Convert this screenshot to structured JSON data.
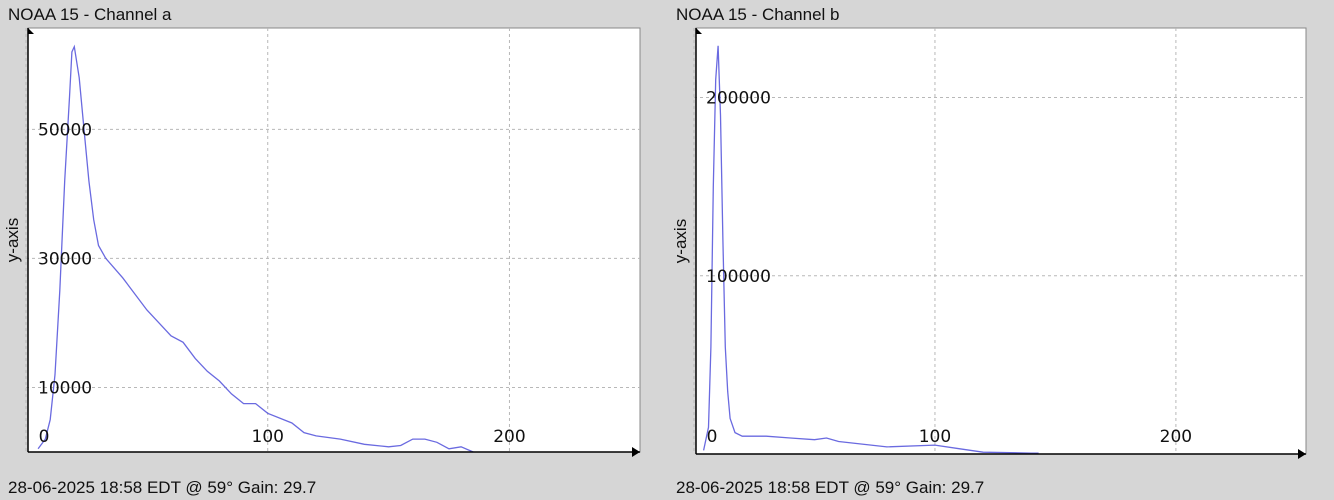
{
  "chart_data": [
    {
      "type": "line",
      "title": "NOAA 15 - Channel a",
      "ylabel": "y-axis",
      "footer": "28-06-2025 18:58 EDT @ 59° Gain: 29.7",
      "x": [
        5,
        8,
        10,
        12,
        14,
        16,
        18,
        19,
        20,
        22,
        24,
        26,
        28,
        30,
        33,
        40,
        50,
        55,
        60,
        65,
        70,
        75,
        80,
        85,
        90,
        95,
        100,
        110,
        115,
        120,
        130,
        140,
        150,
        155,
        160,
        165,
        170,
        175,
        180,
        185
      ],
      "values": [
        500,
        2000,
        5000,
        12000,
        25000,
        42000,
        55000,
        62000,
        62800,
        58000,
        50000,
        42000,
        36000,
        32000,
        30000,
        27000,
        22000,
        20000,
        18000,
        17000,
        14500,
        12500,
        11000,
        9000,
        7500,
        7500,
        6000,
        4500,
        3000,
        2500,
        2000,
        1200,
        800,
        1000,
        2000,
        2000,
        1500,
        500,
        800,
        0
      ],
      "color": "#6a6ae0",
      "xlim": [
        0,
        254
      ],
      "ylim": [
        0,
        65700
      ],
      "xticks": [
        0,
        100,
        200
      ],
      "yticks": [
        10000,
        30000,
        50000
      ],
      "grid": true
    },
    {
      "type": "line",
      "title": "NOAA 15 - Channel b",
      "ylabel": "y-axis",
      "footer": "28-06-2025 18:58 EDT @ 59° Gain: 29.7",
      "x": [
        4,
        6,
        7,
        8,
        9,
        10,
        11,
        12,
        13,
        14,
        15,
        17,
        20,
        30,
        40,
        50,
        55,
        60,
        80,
        100,
        110,
        120,
        140,
        143
      ],
      "values": [
        2000,
        15000,
        60000,
        150000,
        210000,
        229000,
        190000,
        120000,
        60000,
        35000,
        20000,
        12000,
        10000,
        10000,
        9000,
        8000,
        9000,
        7000,
        4000,
        5000,
        3000,
        1000,
        500,
        500
      ],
      "color": "#6a6ae0",
      "xlim": [
        0,
        254
      ],
      "ylim": [
        0,
        239000
      ],
      "xticks": [
        0,
        100,
        200
      ],
      "yticks": [
        100000,
        200000
      ],
      "grid": true
    }
  ]
}
